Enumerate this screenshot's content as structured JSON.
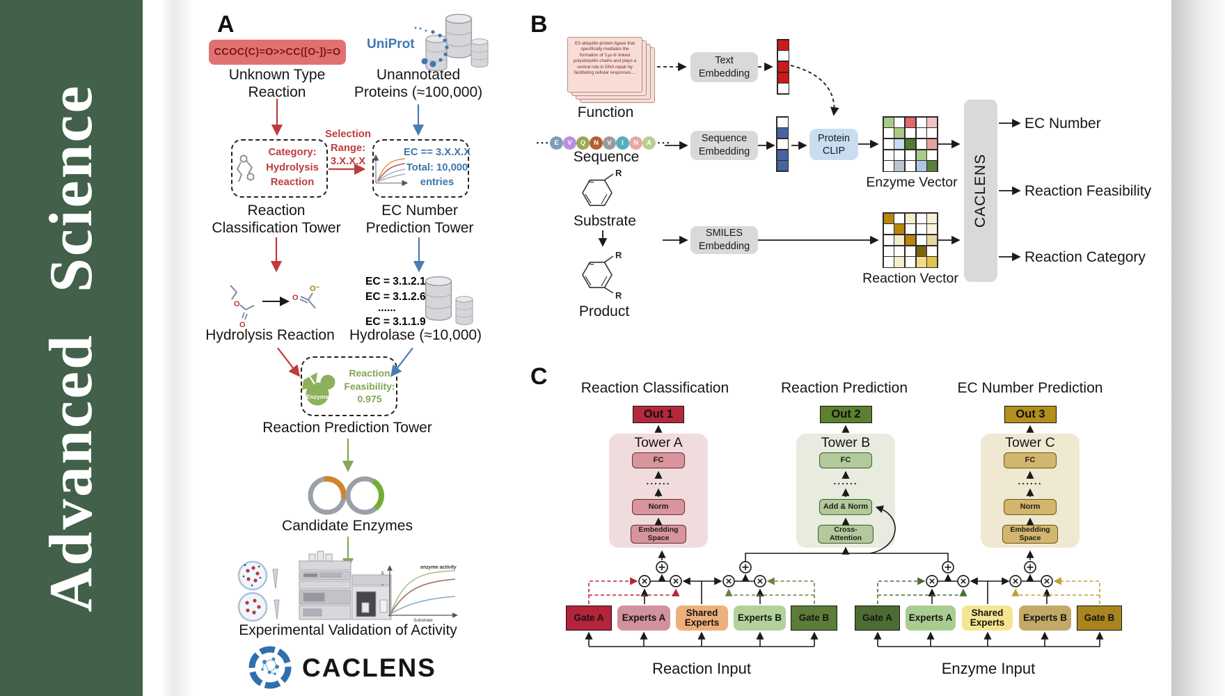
{
  "journal": "Advanced Science",
  "colors": {
    "sidebar_green": "#42604a",
    "red_accent": "#bf3b3b",
    "blue_accent": "#4a7cb0",
    "green_accent": "#84a858",
    "smiles_box_bg": "#e17171",
    "gray_box_bg": "#d9d9d9",
    "protein_clip_bg": "#c9ddf1",
    "out1": "#b5283c",
    "out2": "#5c8030",
    "out3": "#b3901d",
    "tower_a_bg": "#f1dcdd",
    "tower_b_bg": "#e7ecdf",
    "tower_c_bg": "#f0e9d2"
  },
  "panel_a": {
    "label": "A",
    "smiles": "CCOC(C)=O>>CC([O-])=O",
    "unknown_type": [
      "Unknown Type",
      "Reaction"
    ],
    "uniprot": "UniProt",
    "unannotated": [
      "Unannotated",
      "Proteins (≈100,000)"
    ],
    "selection": [
      "Selection",
      "Range:",
      "3.X.X.X"
    ],
    "category": [
      "Category:",
      "Hydrolysis",
      "Reaction"
    ],
    "ec_criteria": [
      "EC == 3.X.X.X",
      "Total: 10,000",
      "entries"
    ],
    "tower1": [
      "Reaction",
      "Classification Tower"
    ],
    "tower2": [
      "EC Number",
      "Prediction Tower"
    ],
    "ec_list": [
      {
        "text": "EC = 3.1.2.1",
        "color": "#9b1b1b"
      },
      {
        "text": "EC = 3.1.2.6",
        "color": "#c6c6c6"
      },
      {
        "text": "......",
        "color": "#9a9a9a"
      },
      {
        "text": "EC = 3.1.1.9",
        "color": "#b7cde6"
      }
    ],
    "hydrolysis": "Hydrolysis Reaction",
    "hydrolase": "Hydrolase (≈10,000)",
    "enzyme": "Enzyme",
    "feasibility": [
      "Reaction",
      "Feasibility:",
      "0.975"
    ],
    "tower3": "Reaction Prediction Tower",
    "candidates": "Candidate Enzymes",
    "plot": {
      "ylabel": "Rate of reaction",
      "xlabel": "Substrate",
      "annotation": "enzyme activity"
    },
    "validation": "Experimental Validation of Activity",
    "logo": "CACLENS",
    "atoms": {
      "o": "O",
      "o_minus": "O⁻"
    }
  },
  "panel_b": {
    "label": "B",
    "function_card": "E3 ubiquitin-protein ligase that specifically mediates the formation of 'Lys-6'-linked polyubiquitin chains and plays a central role in DNA repair by facilitating cellular responses....",
    "function_label": "Function",
    "ellipsis": "···",
    "residues": [
      {
        "letter": "E",
        "color": "#7f9db8"
      },
      {
        "letter": "V",
        "color": "#b98fdc"
      },
      {
        "letter": "Q",
        "color": "#9aa84e"
      },
      {
        "letter": "N",
        "color": "#b06030"
      },
      {
        "letter": "V",
        "color": "#9b9b9b"
      },
      {
        "letter": "I",
        "color": "#55b0bd"
      },
      {
        "letter": "N",
        "color": "#e8a8a2"
      },
      {
        "letter": "A",
        "color": "#b9cf92"
      }
    ],
    "sequence_label": "Sequence",
    "substrate_label": "Substrate",
    "product_label": "Product",
    "r_group": "R",
    "text_embedding": [
      "Text",
      "Embedding"
    ],
    "sequence_embedding": [
      "Sequence",
      "Embedding"
    ],
    "smiles_embedding": [
      "SMILES",
      "Embedding"
    ],
    "protein_clip": [
      "Protein",
      "CLIP"
    ],
    "text_vector": [
      "#cc1a1a",
      "#ffffff",
      "#cc1a1a",
      "#cc1a1a",
      "#ffffff"
    ],
    "sequence_vector": [
      "#ffffff",
      "#44659f",
      "#ffffff",
      "#44659f",
      "#44659f"
    ],
    "enzyme_vector": {
      "label": "Enzyme Vector",
      "cells": [
        [
          "#a9cb85",
          "#ffffff",
          "#e06a6a",
          "#ffffff",
          "#f4c2c6"
        ],
        [
          "#ffffff",
          "#a9cb85",
          "#ffffff",
          "#ffffff",
          "#ffffff"
        ],
        [
          "#ffffff",
          "#c9daee",
          "#4f7d33",
          "#ffffff",
          "#eda0a0"
        ],
        [
          "#ffffff",
          "#ffffff",
          "#ffffff",
          "#a9cb85",
          "#ffffff"
        ],
        [
          "#ffffff",
          "#b9c6d2",
          "#ffffff",
          "#abc8e8",
          "#5c7e3c"
        ]
      ]
    },
    "reaction_vector": {
      "label": "Reaction Vector",
      "cells": [
        [
          "#b8860b",
          "#ffffff",
          "#f5ecca",
          "#ffffff",
          "#f7f0d5"
        ],
        [
          "#ffffff",
          "#b8860b",
          "#ffffff",
          "#ffffff",
          "#faf4dd"
        ],
        [
          "#ffffff",
          "#f5ecca",
          "#b8860b",
          "#ffffff",
          "#e8d8a0"
        ],
        [
          "#ffffff",
          "#ffffff",
          "#ffffff",
          "#7a650f",
          "#ffffff"
        ],
        [
          "#ffffff",
          "#f5ecca",
          "#ffffff",
          "#f0dc88",
          "#e3c44c"
        ]
      ]
    },
    "caclens": "CACLENS",
    "outputs": [
      "EC Number",
      "Reaction Feasibility",
      "Reaction Category"
    ]
  },
  "panel_c": {
    "label": "C",
    "columns": [
      {
        "title": "Reaction Classification",
        "out": "Out 1",
        "tower": "Tower A",
        "layers": [
          "FC",
          "......",
          "Norm",
          "Embedding Space"
        ]
      },
      {
        "title": "Reaction Prediction",
        "out": "Out 2",
        "tower": "Tower B",
        "layers": [
          "FC",
          "......",
          "Add & Norm",
          "Cross-Attention"
        ]
      },
      {
        "title": "EC Number Prediction",
        "out": "Out 3",
        "tower": "Tower C",
        "layers": [
          "FC",
          "......",
          "Norm",
          "Embedding Space"
        ]
      }
    ],
    "moe": [
      {
        "items": [
          {
            "label": "Gate A"
          },
          {
            "label": "Experts A"
          },
          {
            "label": "Shared Experts"
          },
          {
            "label": "Experts B"
          },
          {
            "label": "Gate B"
          }
        ],
        "input": "Reaction Input"
      },
      {
        "items": [
          {
            "label": "Gate A"
          },
          {
            "label": "Experts A"
          },
          {
            "label": "Shared Experts"
          },
          {
            "label": "Experts B"
          },
          {
            "label": "Gate B"
          }
        ],
        "input": "Enzyme Input"
      }
    ]
  }
}
